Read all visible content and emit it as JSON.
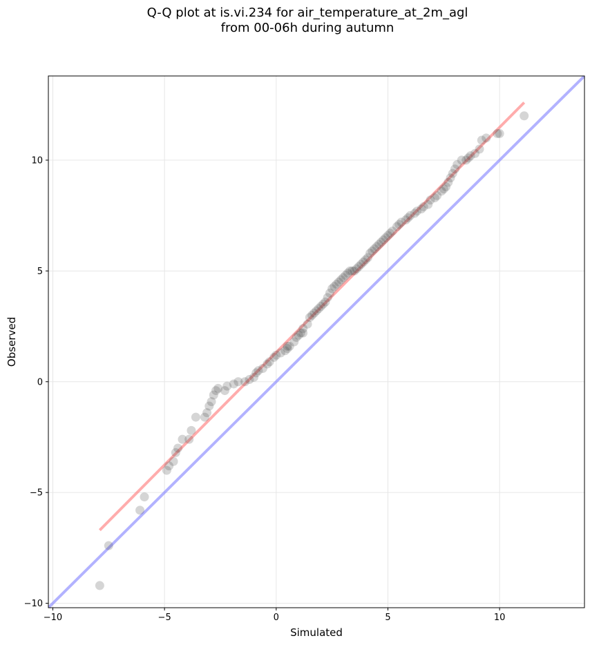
{
  "chart_data": {
    "type": "scatter",
    "title_line1": "Q-Q plot at is.vi.234 for air_temperature_at_2m_agl",
    "title_line2": "from 00-06h during autumn",
    "xlabel": "Simulated",
    "ylabel": "Observed",
    "xlim": [
      -10.2,
      13.8
    ],
    "ylim": [
      -10.2,
      13.8
    ],
    "xticks": [
      -10,
      -5,
      0,
      5,
      10
    ],
    "yticks": [
      -10,
      -5,
      0,
      5,
      10
    ],
    "xtick_labels": [
      "−10",
      "−5",
      "0",
      "5",
      "10"
    ],
    "ytick_labels": [
      "−10",
      "−5",
      "0",
      "5",
      "10"
    ],
    "grid": true,
    "colors": {
      "points": "#404040",
      "fit_line": "#ff8080",
      "identity_line": "#8888ff"
    },
    "fit_line": {
      "x": [
        -7.9,
        11.1
      ],
      "y": [
        -6.7,
        12.6
      ]
    },
    "identity_line": {
      "x": [
        -10.2,
        13.8
      ],
      "y": [
        -10.2,
        13.8
      ]
    },
    "points": {
      "x": [
        -7.9,
        -7.5,
        -6.1,
        -5.9,
        -4.9,
        -4.8,
        -4.6,
        -4.5,
        -4.4,
        -4.2,
        -3.9,
        -3.8,
        -3.6,
        -3.2,
        -3.1,
        -3.0,
        -2.9,
        -2.8,
        -2.7,
        -2.6,
        -2.3,
        -2.2,
        -1.9,
        -1.7,
        -1.4,
        -1.2,
        -1.0,
        -0.9,
        -0.8,
        -0.6,
        -0.4,
        -0.3,
        -0.1,
        0.0,
        0.2,
        0.4,
        0.5,
        0.5,
        0.6,
        0.8,
        0.9,
        1.0,
        1.1,
        1.2,
        1.2,
        1.4,
        1.5,
        1.6,
        1.7,
        1.8,
        1.9,
        2.0,
        2.1,
        2.2,
        2.3,
        2.4,
        2.5,
        2.6,
        2.7,
        2.8,
        2.9,
        3.0,
        3.1,
        3.2,
        3.3,
        3.4,
        3.5,
        3.6,
        3.7,
        3.8,
        3.9,
        4.0,
        4.1,
        4.2,
        4.3,
        4.4,
        4.5,
        4.6,
        4.7,
        4.8,
        4.9,
        5.0,
        5.1,
        5.2,
        5.4,
        5.5,
        5.6,
        5.8,
        5.9,
        6.0,
        6.2,
        6.3,
        6.5,
        6.6,
        6.8,
        6.9,
        7.1,
        7.2,
        7.4,
        7.5,
        7.6,
        7.7,
        7.8,
        7.9,
        8.0,
        8.1,
        8.3,
        8.5,
        8.6,
        8.7,
        8.9,
        9.1,
        9.2,
        9.4,
        9.9,
        10.0,
        11.1
      ],
      "y": [
        -9.2,
        -7.4,
        -5.8,
        -5.2,
        -4.0,
        -3.8,
        -3.6,
        -3.2,
        -3.0,
        -2.6,
        -2.6,
        -2.2,
        -1.6,
        -1.6,
        -1.4,
        -1.1,
        -0.9,
        -0.6,
        -0.4,
        -0.3,
        -0.4,
        -0.2,
        -0.1,
        0.0,
        0.0,
        0.1,
        0.2,
        0.4,
        0.5,
        0.6,
        0.8,
        0.9,
        1.1,
        1.2,
        1.3,
        1.4,
        1.5,
        1.6,
        1.6,
        1.8,
        2.0,
        2.1,
        2.2,
        2.2,
        2.4,
        2.6,
        2.9,
        3.0,
        3.1,
        3.2,
        3.3,
        3.4,
        3.5,
        3.6,
        3.8,
        4.0,
        4.2,
        4.3,
        4.4,
        4.5,
        4.6,
        4.7,
        4.8,
        4.9,
        5.0,
        5.0,
        5.0,
        5.1,
        5.2,
        5.3,
        5.4,
        5.5,
        5.6,
        5.8,
        5.9,
        6.0,
        6.1,
        6.2,
        6.3,
        6.4,
        6.5,
        6.6,
        6.7,
        6.8,
        7.0,
        7.1,
        7.2,
        7.3,
        7.4,
        7.5,
        7.6,
        7.7,
        7.8,
        7.9,
        8.0,
        8.2,
        8.3,
        8.4,
        8.6,
        8.7,
        8.8,
        9.0,
        9.2,
        9.4,
        9.6,
        9.8,
        10.0,
        10.0,
        10.1,
        10.2,
        10.3,
        10.5,
        10.9,
        11.0,
        11.2,
        11.2,
        12.0
      ]
    }
  }
}
